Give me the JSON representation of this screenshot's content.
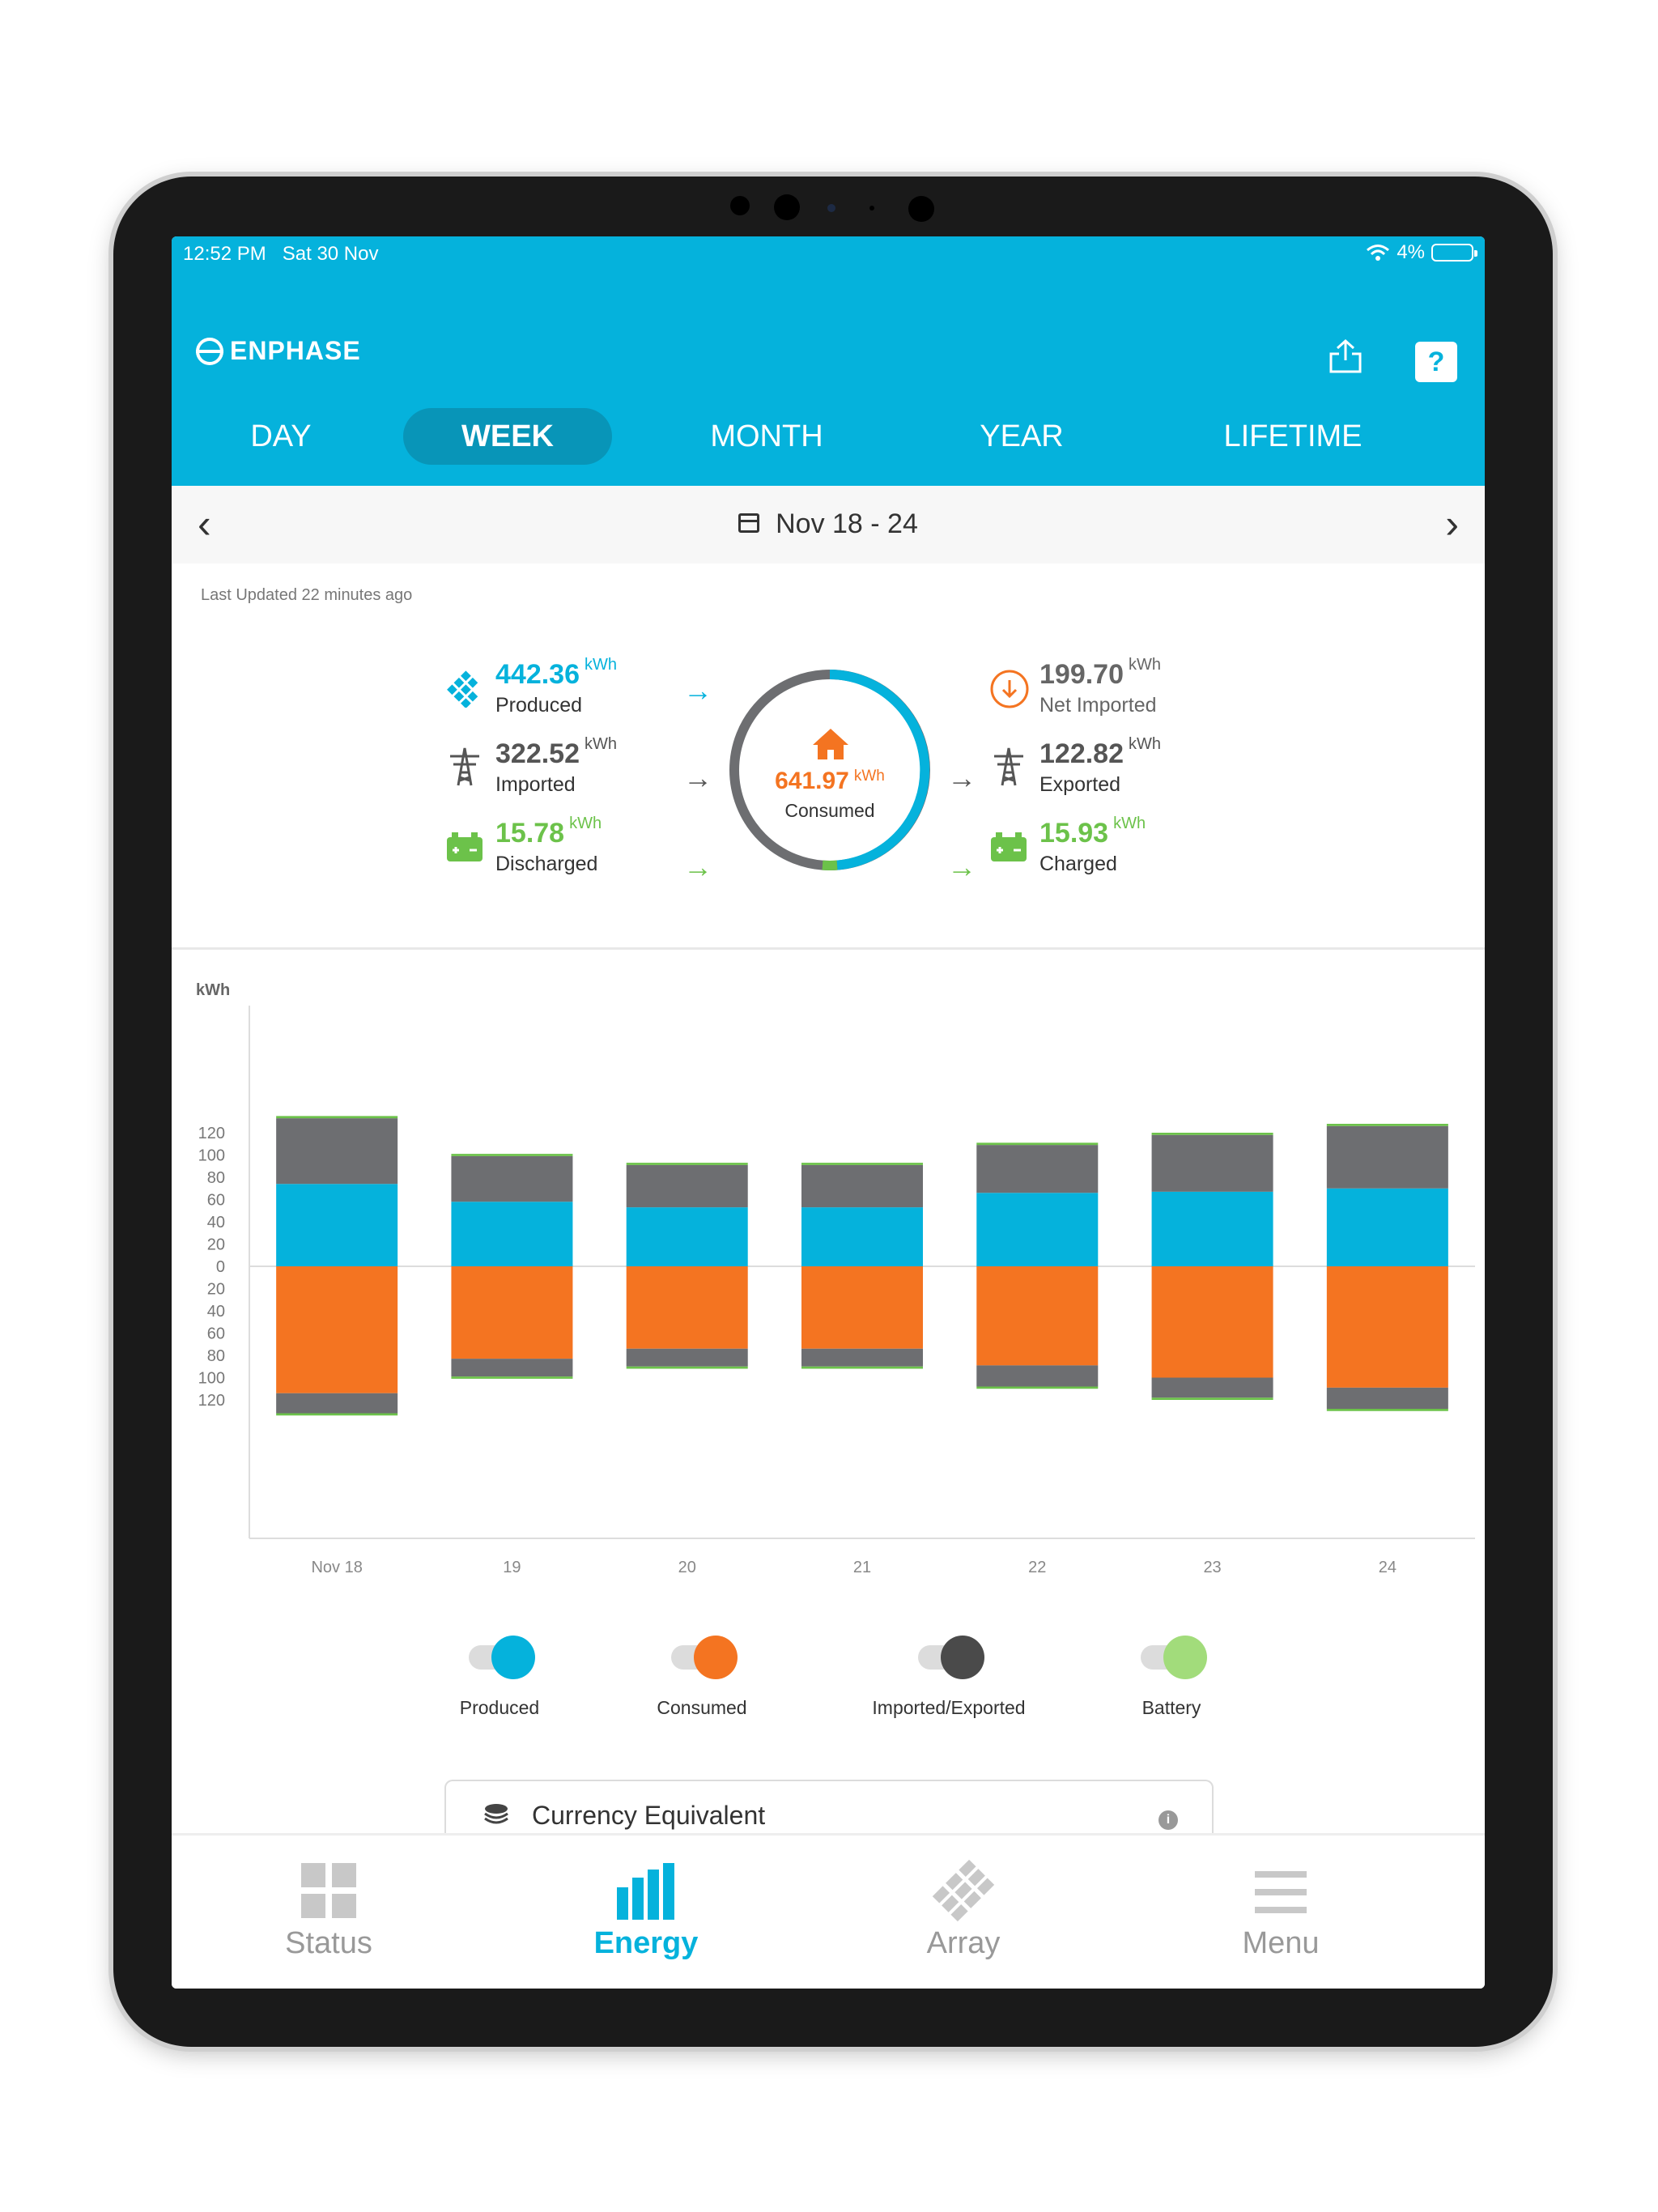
{
  "status_bar": {
    "time": "12:52 PM",
    "date": "Sat 30 Nov",
    "battery": "4%"
  },
  "app": {
    "name": "ENPHASE"
  },
  "tabs": [
    {
      "label": "DAY",
      "active": false
    },
    {
      "label": "WEEK",
      "active": true
    },
    {
      "label": "MONTH",
      "active": false
    },
    {
      "label": "YEAR",
      "active": false
    },
    {
      "label": "LIFETIME",
      "active": false
    }
  ],
  "date_range": "Nov 18 - 24",
  "last_updated": "Last Updated 22 minutes ago",
  "summary": {
    "produced": {
      "value": "442.36",
      "unit": "kWh",
      "label": "Produced"
    },
    "imported": {
      "value": "322.52",
      "unit": "kWh",
      "label": "Imported"
    },
    "discharged": {
      "value": "15.78",
      "unit": "kWh",
      "label": "Discharged"
    },
    "consumed": {
      "value": "641.97",
      "unit": "kWh",
      "label": "Consumed"
    },
    "net_imported": {
      "value": "199.70",
      "unit": "kWh",
      "label": "Net Imported"
    },
    "exported": {
      "value": "122.82",
      "unit": "kWh",
      "label": "Exported"
    },
    "charged": {
      "value": "15.93",
      "unit": "kWh",
      "label": "Charged"
    }
  },
  "colors": {
    "produced": "#05b2dc",
    "consumed": "#f47421",
    "grid": "#6d6e71",
    "battery": "#6cc24a",
    "header": "#05b2dc"
  },
  "chart_data": {
    "type": "bar",
    "ylabel": "kWh",
    "ylim": [
      -135,
      135
    ],
    "yticks": [
      "120",
      "100",
      "80",
      "60",
      "40",
      "20",
      "0",
      "20",
      "40",
      "60",
      "80",
      "100",
      "120"
    ],
    "categories": [
      "Nov 18",
      "19",
      "20",
      "21",
      "22",
      "23",
      "24"
    ],
    "series": [
      {
        "name": "Produced",
        "values": [
          74,
          58,
          53,
          53,
          66,
          67,
          70
        ]
      },
      {
        "name": "Imported/Exported",
        "values": [
          59,
          41,
          38,
          38,
          43,
          51,
          56
        ]
      },
      {
        "name": "Battery",
        "values": [
          2,
          2,
          2,
          2,
          2,
          2,
          2
        ]
      },
      {
        "name": "Consumed",
        "values": [
          -114,
          -83,
          -74,
          -74,
          -89,
          -100,
          -109
        ]
      },
      {
        "name": "Imported/Exported",
        "values": [
          -18,
          -16,
          -16,
          -16,
          -19,
          -18,
          -19
        ]
      },
      {
        "name": "Battery",
        "values": [
          -2,
          -2,
          -2,
          -2,
          -2,
          -2,
          -2
        ]
      }
    ]
  },
  "legend": [
    {
      "label": "Produced"
    },
    {
      "label": "Consumed"
    },
    {
      "label": "Imported/Exported"
    },
    {
      "label": "Battery"
    }
  ],
  "currency": {
    "label": "Currency Equivalent"
  },
  "nav": [
    {
      "label": "Status",
      "icon": "grid-icon",
      "active": false
    },
    {
      "label": "Energy",
      "icon": "bar-chart-icon",
      "active": true
    },
    {
      "label": "Array",
      "icon": "solar-array-icon",
      "active": false
    },
    {
      "label": "Menu",
      "icon": "hamburger-icon",
      "active": false
    }
  ]
}
